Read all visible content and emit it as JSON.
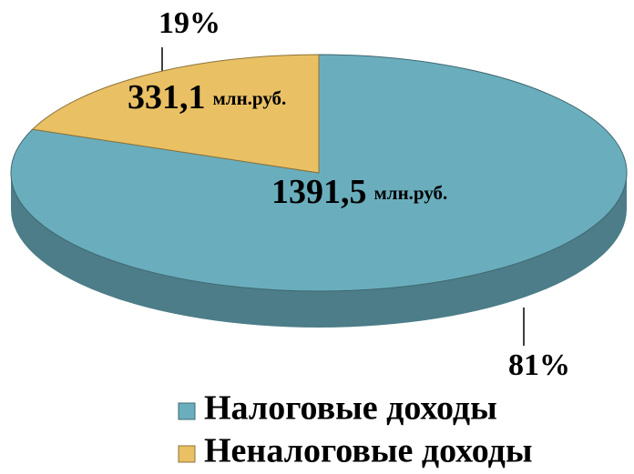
{
  "chart_data": {
    "type": "pie",
    "categories": [
      "Налоговые доходы",
      "Неналоговые доходы"
    ],
    "values": [
      81,
      19
    ],
    "value_labels": [
      "81%",
      "19%"
    ],
    "amount_labels": [
      "1391,5",
      "331,1"
    ],
    "amount_unit": "млн.руб.",
    "colors": [
      "#6aaebd",
      "#e9c064"
    ],
    "legend": "bottom"
  }
}
